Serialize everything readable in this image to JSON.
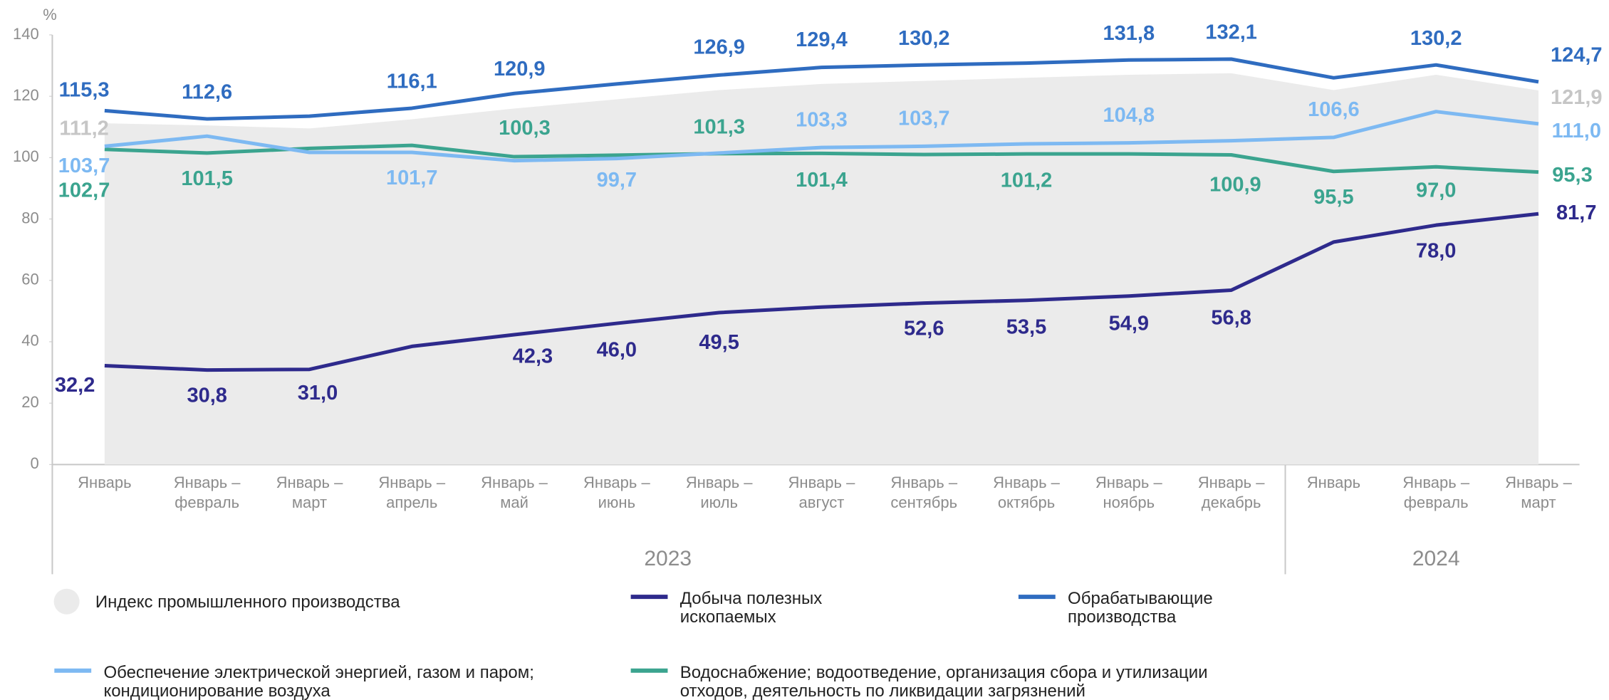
{
  "chart_data": {
    "type": "line",
    "y_label": "%",
    "categories": [
      "Январь",
      "Январь – февраль",
      "Январь – март",
      "Январь – апрель",
      "Январь – май",
      "Январь – июнь",
      "Январь – июль",
      "Январь – август",
      "Январь – сентябрь",
      "Январь – октябрь",
      "Январь – ноябрь",
      "Январь – декабрь",
      "Январь",
      "Январь – февраль",
      "Январь – март"
    ],
    "groups": [
      "2023",
      "2024"
    ],
    "ylim": [
      0,
      140
    ],
    "yticks": [
      0,
      20,
      40,
      60,
      80,
      100,
      120,
      140
    ],
    "series": [
      {
        "name": "Индекс промышленного производства",
        "type": "area",
        "color": "#ebebeb",
        "label_color": "#c6c6c6",
        "values": [
          111.2,
          110.5,
          109.5,
          112.5,
          116,
          119,
          122,
          124,
          125,
          126,
          127,
          127.5,
          122,
          127,
          121.9
        ],
        "value_labels": [
          "111,2",
          null,
          null,
          null,
          null,
          null,
          null,
          null,
          null,
          null,
          null,
          null,
          null,
          null,
          "121,9"
        ]
      },
      {
        "name": "Добыча полезных ископаемых",
        "type": "line",
        "color": "#2e2a8c",
        "label_color": "#2e2a8c",
        "values": [
          32.2,
          30.8,
          31.0,
          38.5,
          42.3,
          46.0,
          49.5,
          51.3,
          52.6,
          53.5,
          54.9,
          56.8,
          72.5,
          78.0,
          81.7
        ],
        "value_labels": [
          "32,2",
          "30,8",
          "31,0",
          null,
          "42,3",
          "46,0",
          "49,5",
          null,
          "52,6",
          "53,5",
          "54,9",
          "56,8",
          null,
          "78,0",
          "81,7"
        ]
      },
      {
        "name": "Обрабатывающие производства",
        "type": "line",
        "color": "#2f6cc0",
        "label_color": "#2f6cc0",
        "values": [
          115.3,
          112.6,
          113.5,
          116.1,
          120.9,
          124.0,
          126.9,
          129.4,
          130.2,
          130.8,
          131.8,
          132.1,
          126.0,
          130.2,
          124.7
        ],
        "value_labels": [
          "115,3",
          "112,6",
          null,
          "116,1",
          "120,9",
          null,
          "126,9",
          "129,4",
          "130,2",
          null,
          "131,8",
          "132,1",
          null,
          "130,2",
          "124,7"
        ]
      },
      {
        "name": "Обеспечение электрической энергией, газом и паром; кондиционирование воздуха",
        "type": "line",
        "color": "#7db9f2",
        "label_color": "#7db9f2",
        "values": [
          103.7,
          107.0,
          101.7,
          101.7,
          99.0,
          99.7,
          101.5,
          103.3,
          103.7,
          104.5,
          104.8,
          105.5,
          106.6,
          115.0,
          111.0
        ],
        "value_labels": [
          "103,7",
          null,
          null,
          "101,7",
          null,
          "99,7",
          null,
          "103,3",
          "103,7",
          null,
          "104,8",
          null,
          "106,6",
          null,
          "111,0"
        ]
      },
      {
        "name": "Водоснабжение; водоотведение, организация сбора и утилизации отходов, деятельность по ликвидации загрязнений",
        "type": "line",
        "color": "#3ba48f",
        "label_color": "#3ba48f",
        "values": [
          102.7,
          101.5,
          103.0,
          104.0,
          100.3,
          100.8,
          101.3,
          101.4,
          101.0,
          101.2,
          101.2,
          100.9,
          95.5,
          97.0,
          95.3
        ],
        "value_labels": [
          "102,7",
          "101,5",
          null,
          null,
          "100,3",
          null,
          "101,3",
          "101,4",
          null,
          "101,2",
          null,
          "100,9",
          "95,5",
          "97,0",
          "95,3"
        ]
      }
    ]
  }
}
